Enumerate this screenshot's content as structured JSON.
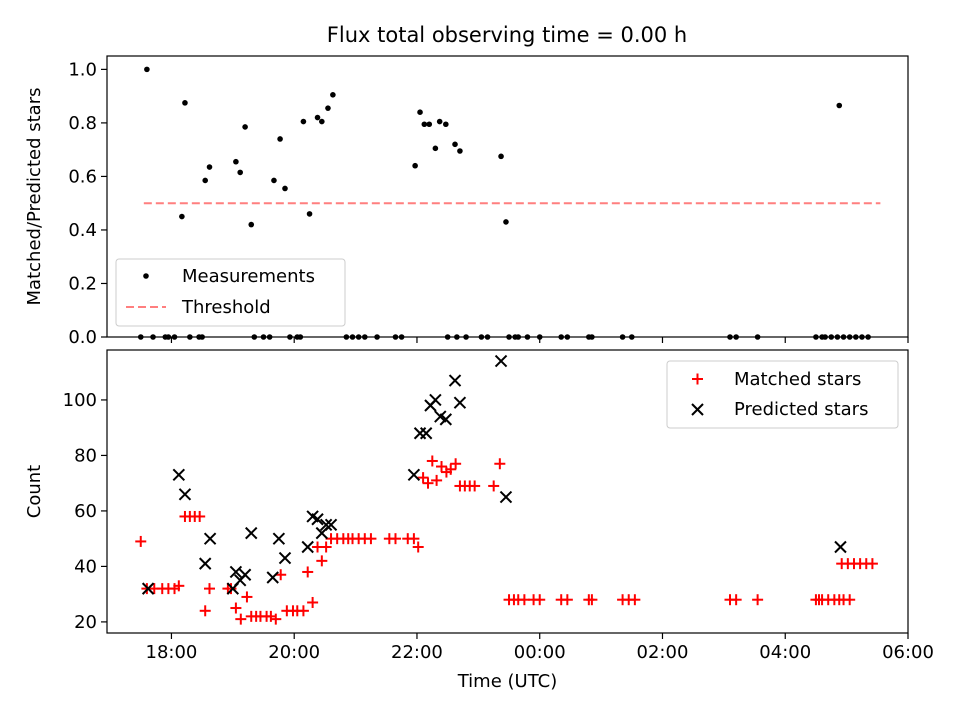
{
  "figure_title": "Flux total observing time = 0.00 h",
  "chart_data": [
    {
      "type": "scatter",
      "name": "ratio-panel",
      "title": "Flux total observing time = 0.00 h",
      "xlabel": "",
      "ylabel": "Matched/Predicted stars",
      "xlim": [
        -1.05,
        12.0
      ],
      "ylim": [
        0.0,
        1.05
      ],
      "yticks": [
        {
          "value": 0.0,
          "label": "0.0"
        },
        {
          "value": 0.2,
          "label": "0.2"
        },
        {
          "value": 0.4,
          "label": "0.4"
        },
        {
          "value": 0.6,
          "label": "0.6"
        },
        {
          "value": 0.8,
          "label": "0.8"
        },
        {
          "value": 1.0,
          "label": "1.0"
        }
      ],
      "legend": {
        "position": "lower-left",
        "entries": [
          {
            "label": "Measurements",
            "marker": "dot",
            "color": "#000000"
          },
          {
            "label": "Threshold",
            "marker": "dashed-line",
            "color": "#ff7f7f"
          }
        ]
      },
      "series": [
        {
          "name": "Measurements",
          "color": "#000000",
          "points": [
            [
              -0.4,
              1.0
            ],
            [
              0.17,
              0.45
            ],
            [
              0.22,
              0.875
            ],
            [
              0.55,
              0.585
            ],
            [
              0.62,
              0.635
            ],
            [
              1.05,
              0.655
            ],
            [
              1.12,
              0.615
            ],
            [
              1.2,
              0.785
            ],
            [
              1.3,
              0.42
            ],
            [
              1.67,
              0.585
            ],
            [
              1.77,
              0.74
            ],
            [
              1.85,
              0.555
            ],
            [
              2.15,
              0.805
            ],
            [
              2.25,
              0.46
            ],
            [
              2.38,
              0.82
            ],
            [
              2.45,
              0.805
            ],
            [
              2.55,
              0.855
            ],
            [
              2.63,
              0.905
            ],
            [
              3.97,
              0.64
            ],
            [
              4.05,
              0.84
            ],
            [
              4.12,
              0.795
            ],
            [
              4.2,
              0.795
            ],
            [
              4.3,
              0.705
            ],
            [
              4.37,
              0.805
            ],
            [
              4.47,
              0.795
            ],
            [
              4.62,
              0.72
            ],
            [
              4.7,
              0.695
            ],
            [
              5.37,
              0.675
            ],
            [
              5.45,
              0.43
            ],
            [
              10.88,
              0.865
            ],
            [
              -0.5,
              0.0
            ],
            [
              -0.3,
              0.0
            ],
            [
              -0.1,
              0.0
            ],
            [
              -0.05,
              0.0
            ],
            [
              0.05,
              0.0
            ],
            [
              0.3,
              0.0
            ],
            [
              0.45,
              0.0
            ],
            [
              0.5,
              0.0
            ],
            [
              1.35,
              0.0
            ],
            [
              1.5,
              0.0
            ],
            [
              1.6,
              0.0
            ],
            [
              1.93,
              0.0
            ],
            [
              2.05,
              0.0
            ],
            [
              2.1,
              0.0
            ],
            [
              2.85,
              0.0
            ],
            [
              2.95,
              0.0
            ],
            [
              3.05,
              0.0
            ],
            [
              3.15,
              0.0
            ],
            [
              3.35,
              0.0
            ],
            [
              3.65,
              0.0
            ],
            [
              3.75,
              0.0
            ],
            [
              4.5,
              0.0
            ],
            [
              4.65,
              0.0
            ],
            [
              4.8,
              0.0
            ],
            [
              5.05,
              0.0
            ],
            [
              5.15,
              0.0
            ],
            [
              5.5,
              0.0
            ],
            [
              5.6,
              0.0
            ],
            [
              5.65,
              0.0
            ],
            [
              5.8,
              0.0
            ],
            [
              6.0,
              0.0
            ],
            [
              6.35,
              0.0
            ],
            [
              6.45,
              0.0
            ],
            [
              6.8,
              0.0
            ],
            [
              6.85,
              0.0
            ],
            [
              7.35,
              0.0
            ],
            [
              7.5,
              0.0
            ],
            [
              9.1,
              0.0
            ],
            [
              9.2,
              0.0
            ],
            [
              9.55,
              0.0
            ],
            [
              10.5,
              0.0
            ],
            [
              10.6,
              0.0
            ],
            [
              10.65,
              0.0
            ],
            [
              10.75,
              0.0
            ],
            [
              10.85,
              0.0
            ],
            [
              10.95,
              0.0
            ],
            [
              11.05,
              0.0
            ],
            [
              11.15,
              0.0
            ],
            [
              11.25,
              0.0
            ],
            [
              11.35,
              0.0
            ]
          ]
        }
      ],
      "threshold": {
        "label": "Threshold",
        "value": 0.5,
        "x_start": -0.45,
        "x_end": 11.55,
        "color": "#ff7f7f"
      }
    },
    {
      "type": "scatter",
      "name": "count-panel",
      "title": "",
      "xlabel": "Time (UTC)",
      "ylabel": "Count",
      "xlim": [
        -1.05,
        12.0
      ],
      "ylim": [
        16,
        118
      ],
      "xticks": [
        {
          "value": 0,
          "label": "18:00"
        },
        {
          "value": 2,
          "label": "20:00"
        },
        {
          "value": 4,
          "label": "22:00"
        },
        {
          "value": 6,
          "label": "00:00"
        },
        {
          "value": 8,
          "label": "02:00"
        },
        {
          "value": 10,
          "label": "04:00"
        },
        {
          "value": 12,
          "label": "06:00"
        }
      ],
      "yticks": [
        {
          "value": 20,
          "label": "20"
        },
        {
          "value": 40,
          "label": "40"
        },
        {
          "value": 60,
          "label": "60"
        },
        {
          "value": 80,
          "label": "80"
        },
        {
          "value": 100,
          "label": "100"
        }
      ],
      "legend": {
        "position": "top-right",
        "entries": [
          {
            "label": "Matched stars",
            "marker": "plus",
            "color": "#ff0000"
          },
          {
            "label": "Predicted stars",
            "marker": "x",
            "color": "#000000"
          }
        ]
      },
      "series": [
        {
          "name": "Matched stars",
          "marker": "plus",
          "color": "#ff0000",
          "points": [
            [
              -0.5,
              49
            ],
            [
              -0.4,
              32
            ],
            [
              -0.28,
              32
            ],
            [
              -0.15,
              32
            ],
            [
              -0.05,
              32
            ],
            [
              0.05,
              32
            ],
            [
              0.12,
              33
            ],
            [
              0.22,
              58
            ],
            [
              0.3,
              58
            ],
            [
              0.38,
              58
            ],
            [
              0.46,
              58
            ],
            [
              0.55,
              24
            ],
            [
              0.62,
              32
            ],
            [
              0.92,
              32
            ],
            [
              0.97,
              32
            ],
            [
              1.05,
              25
            ],
            [
              1.13,
              21
            ],
            [
              1.23,
              29
            ],
            [
              1.3,
              22
            ],
            [
              1.38,
              22
            ],
            [
              1.45,
              22
            ],
            [
              1.55,
              22
            ],
            [
              1.62,
              22
            ],
            [
              1.7,
              21
            ],
            [
              1.78,
              37
            ],
            [
              1.88,
              24
            ],
            [
              1.98,
              24
            ],
            [
              2.05,
              24
            ],
            [
              2.15,
              24
            ],
            [
              2.22,
              38
            ],
            [
              2.3,
              27
            ],
            [
              2.38,
              47
            ],
            [
              2.45,
              42
            ],
            [
              2.52,
              47
            ],
            [
              2.6,
              50
            ],
            [
              2.7,
              50
            ],
            [
              2.8,
              50
            ],
            [
              2.88,
              50
            ],
            [
              2.95,
              50
            ],
            [
              3.05,
              50
            ],
            [
              3.15,
              50
            ],
            [
              3.25,
              50
            ],
            [
              3.55,
              50
            ],
            [
              3.65,
              50
            ],
            [
              3.85,
              50
            ],
            [
              3.95,
              50
            ],
            [
              4.02,
              47
            ],
            [
              4.1,
              72
            ],
            [
              4.18,
              70
            ],
            [
              4.25,
              78
            ],
            [
              4.32,
              71
            ],
            [
              4.4,
              76
            ],
            [
              4.48,
              74
            ],
            [
              4.55,
              75
            ],
            [
              4.63,
              77
            ],
            [
              4.7,
              69
            ],
            [
              4.78,
              69
            ],
            [
              4.86,
              69
            ],
            [
              4.94,
              69
            ],
            [
              5.25,
              69
            ],
            [
              5.35,
              77
            ],
            [
              5.5,
              28
            ],
            [
              5.58,
              28
            ],
            [
              5.65,
              28
            ],
            [
              5.75,
              28
            ],
            [
              5.9,
              28
            ],
            [
              6.0,
              28
            ],
            [
              6.35,
              28
            ],
            [
              6.45,
              28
            ],
            [
              6.8,
              28
            ],
            [
              6.85,
              28
            ],
            [
              7.35,
              28
            ],
            [
              7.45,
              28
            ],
            [
              7.55,
              28
            ],
            [
              9.1,
              28
            ],
            [
              9.2,
              28
            ],
            [
              9.55,
              28
            ],
            [
              10.5,
              28
            ],
            [
              10.55,
              28
            ],
            [
              10.6,
              28
            ],
            [
              10.7,
              28
            ],
            [
              10.8,
              28
            ],
            [
              10.88,
              28
            ],
            [
              10.95,
              28
            ],
            [
              11.05,
              28
            ],
            [
              10.92,
              41
            ],
            [
              11.02,
              41
            ],
            [
              11.12,
              41
            ],
            [
              11.22,
              41
            ],
            [
              11.32,
              41
            ],
            [
              11.42,
              41
            ]
          ]
        },
        {
          "name": "Predicted stars",
          "marker": "x",
          "color": "#000000",
          "points": [
            [
              -0.38,
              32
            ],
            [
              0.12,
              73
            ],
            [
              0.22,
              66
            ],
            [
              0.55,
              41
            ],
            [
              0.63,
              50
            ],
            [
              1.0,
              32
            ],
            [
              1.05,
              38
            ],
            [
              1.12,
              35
            ],
            [
              1.2,
              37
            ],
            [
              1.3,
              52
            ],
            [
              1.65,
              36
            ],
            [
              1.75,
              50
            ],
            [
              1.85,
              43
            ],
            [
              2.22,
              47
            ],
            [
              2.3,
              58
            ],
            [
              2.38,
              57
            ],
            [
              2.45,
              52
            ],
            [
              2.52,
              55
            ],
            [
              2.6,
              55
            ],
            [
              3.95,
              73
            ],
            [
              4.05,
              88
            ],
            [
              4.15,
              88
            ],
            [
              4.22,
              98
            ],
            [
              4.3,
              100
            ],
            [
              4.38,
              94
            ],
            [
              4.47,
              93
            ],
            [
              4.62,
              107
            ],
            [
              4.7,
              99
            ],
            [
              5.37,
              114
            ],
            [
              5.45,
              65
            ],
            [
              10.9,
              47
            ]
          ]
        }
      ]
    }
  ]
}
